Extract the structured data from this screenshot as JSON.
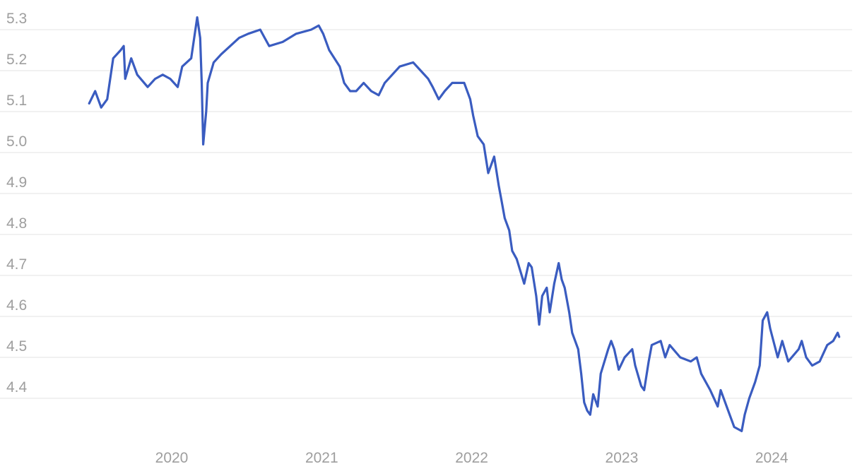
{
  "chart_data": {
    "type": "line",
    "title": "",
    "xlabel": "",
    "ylabel": "",
    "x_ticks": [
      "2020",
      "2021",
      "2022",
      "2023",
      "2024"
    ],
    "y_ticks": [
      "5.3",
      "5.2",
      "5.1",
      "5.0",
      "4.9",
      "4.8",
      "4.7",
      "4.6",
      "4.5",
      "4.4"
    ],
    "ylim": [
      4.3,
      5.35
    ],
    "xlim": [
      2019.4,
      2024.5
    ],
    "grid": "horizontal",
    "line_color": "#3a5cc0",
    "series": [
      {
        "x": [
          2019.45,
          2019.49,
          2019.53,
          2019.57,
          2019.61,
          2019.66,
          2019.68,
          2019.69,
          2019.73,
          2019.77,
          2019.84,
          2019.89,
          2019.94,
          2019.99,
          2020.04,
          2020.07,
          2020.13,
          2020.17,
          2020.19,
          2020.2,
          2020.21,
          2020.23,
          2020.24,
          2020.28,
          2020.33,
          2020.39,
          2020.45,
          2020.51,
          2020.59,
          2020.62,
          2020.65,
          2020.74,
          2020.83,
          2020.93,
          2020.98,
          2021.01,
          2021.05,
          2021.12,
          2021.15,
          2021.19,
          2021.23,
          2021.28,
          2021.33,
          2021.38,
          2021.42,
          2021.47,
          2021.52,
          2021.61,
          2021.66,
          2021.71,
          2021.74,
          2021.78,
          2021.82,
          2021.87,
          2021.92,
          2021.95,
          2021.99,
          2022.01,
          2022.04,
          2022.08,
          2022.11,
          2022.15,
          2022.18,
          2022.2,
          2022.22,
          2022.25,
          2022.27,
          2022.3,
          2022.35,
          2022.38,
          2022.4,
          2022.43,
          2022.45,
          2022.47,
          2022.5,
          2022.52,
          2022.55,
          2022.58,
          2022.6,
          2022.62,
          2022.65,
          2022.67,
          2022.71,
          2022.73,
          2022.75,
          2022.77,
          2022.79,
          2022.81,
          2022.84,
          2022.86,
          2022.91,
          2022.93,
          2022.95,
          2022.98,
          2023.02,
          2023.07,
          2023.09,
          2023.13,
          2023.15,
          2023.18,
          2023.2,
          2023.26,
          2023.29,
          2023.32,
          2023.39,
          2023.46,
          2023.5,
          2023.53,
          2023.59,
          2023.64,
          2023.66,
          2023.71,
          2023.75,
          2023.8,
          2023.82,
          2023.85,
          2023.89,
          2023.92,
          2023.94,
          2023.97,
          2023.99,
          2024.04,
          2024.07,
          2024.11,
          2024.18,
          2024.2,
          2024.23,
          2024.27,
          2024.32,
          2024.37,
          2024.41,
          2024.44,
          2024.45
        ],
        "y": [
          5.12,
          5.15,
          5.11,
          5.13,
          5.23,
          5.25,
          5.26,
          5.18,
          5.23,
          5.19,
          5.16,
          5.18,
          5.19,
          5.18,
          5.16,
          5.21,
          5.23,
          5.33,
          5.28,
          5.17,
          5.02,
          5.1,
          5.17,
          5.22,
          5.24,
          5.26,
          5.28,
          5.29,
          5.3,
          5.28,
          5.26,
          5.27,
          5.29,
          5.3,
          5.31,
          5.29,
          5.25,
          5.21,
          5.17,
          5.15,
          5.15,
          5.17,
          5.15,
          5.14,
          5.17,
          5.19,
          5.21,
          5.22,
          5.2,
          5.18,
          5.16,
          5.13,
          5.15,
          5.17,
          5.17,
          5.17,
          5.13,
          5.09,
          5.04,
          5.02,
          4.95,
          4.99,
          4.92,
          4.88,
          4.84,
          4.81,
          4.76,
          4.74,
          4.68,
          4.73,
          4.72,
          4.65,
          4.58,
          4.65,
          4.67,
          4.61,
          4.68,
          4.73,
          4.69,
          4.67,
          4.61,
          4.56,
          4.52,
          4.46,
          4.39,
          4.37,
          4.36,
          4.41,
          4.38,
          4.46,
          4.52,
          4.54,
          4.52,
          4.47,
          4.5,
          4.52,
          4.48,
          4.43,
          4.42,
          4.49,
          4.53,
          4.54,
          4.5,
          4.53,
          4.5,
          4.49,
          4.5,
          4.46,
          4.42,
          4.38,
          4.42,
          4.37,
          4.33,
          4.32,
          4.36,
          4.4,
          4.44,
          4.48,
          4.59,
          4.61,
          4.57,
          4.5,
          4.54,
          4.49,
          4.52,
          4.54,
          4.5,
          4.48,
          4.49,
          4.53,
          4.54,
          4.56,
          4.55
        ]
      }
    ]
  }
}
